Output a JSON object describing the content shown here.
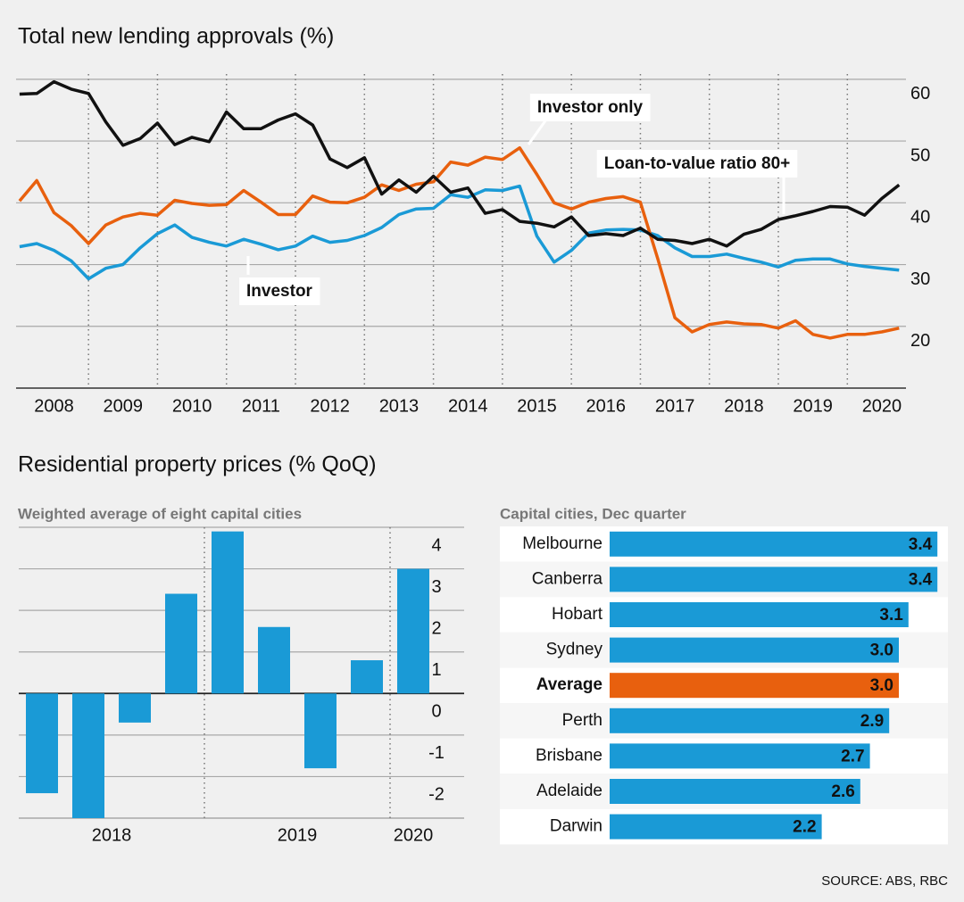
{
  "chart_data": [
    {
      "type": "line",
      "title": "Total new lending approvals (%)",
      "x": [
        2008,
        2008.25,
        2008.5,
        2008.75,
        2009,
        2009.25,
        2009.5,
        2009.75,
        2010,
        2010.25,
        2010.5,
        2010.75,
        2011,
        2011.25,
        2011.5,
        2011.75,
        2012,
        2012.25,
        2012.5,
        2012.75,
        2013,
        2013.25,
        2013.5,
        2013.75,
        2014,
        2014.25,
        2014.5,
        2014.75,
        2015,
        2015.25,
        2015.5,
        2015.75,
        2016,
        2016.25,
        2016.5,
        2016.75,
        2017,
        2017.25,
        2017.5,
        2017.75,
        2018,
        2018.25,
        2018.5,
        2018.75,
        2019,
        2019.25,
        2019.5,
        2019.75,
        2020,
        2020.25,
        2020.5,
        2020.75
      ],
      "xlim": [
        2007.95,
        2020.85
      ],
      "xticks": [
        2008,
        2009,
        2010,
        2011,
        2012,
        2013,
        2014,
        2015,
        2016,
        2017,
        2018,
        2019,
        2020
      ],
      "ylim": [
        10,
        62
      ],
      "yticks": [
        20,
        30,
        40,
        50,
        60
      ],
      "grid": true,
      "series": [
        {
          "name": "Investor",
          "color": "#1a9ad6",
          "values": [
            32.9,
            33.4,
            32.3,
            30.6,
            27.7,
            29.4,
            30.0,
            32.7,
            35.0,
            36.4,
            34.4,
            33.6,
            33.0,
            34.1,
            33.3,
            32.4,
            33.0,
            34.6,
            33.6,
            33.9,
            34.7,
            36.0,
            38.1,
            39.0,
            39.1,
            41.3,
            40.9,
            42.1,
            42.0,
            42.7,
            34.6,
            30.4,
            32.3,
            35.1,
            35.6,
            35.7,
            35.6,
            34.7,
            32.7,
            31.3,
            31.3,
            31.7,
            31.0,
            30.4,
            29.6,
            30.7,
            30.9,
            30.9,
            30.1,
            29.7,
            29.4,
            29.1
          ]
        },
        {
          "name": "Investor only",
          "color": "#e8600e",
          "values": [
            40.3,
            43.6,
            38.4,
            36.3,
            33.4,
            36.4,
            37.7,
            38.3,
            38.0,
            40.4,
            39.9,
            39.6,
            39.7,
            42.0,
            40.1,
            38.1,
            38.1,
            41.1,
            40.1,
            40.0,
            40.9,
            42.9,
            42.0,
            43.0,
            43.4,
            46.6,
            46.1,
            47.4,
            47.0,
            48.9,
            44.6,
            40.0,
            39.0,
            40.1,
            40.7,
            41.0,
            40.1,
            31.0,
            21.4,
            19.1,
            20.3,
            20.7,
            20.4,
            20.3,
            19.7,
            20.9,
            18.7,
            18.1,
            18.7,
            18.7,
            19.1,
            19.7
          ]
        },
        {
          "name": "Loan-to-value ratio 80+",
          "color": "#111111",
          "values": [
            57.6,
            57.7,
            59.6,
            58.4,
            57.7,
            53.1,
            49.3,
            50.4,
            52.9,
            49.4,
            50.6,
            49.9,
            54.7,
            52.0,
            52.0,
            53.4,
            54.4,
            52.6,
            47.1,
            45.7,
            47.3,
            41.4,
            43.7,
            41.7,
            44.3,
            41.7,
            42.4,
            38.3,
            38.9,
            37.0,
            36.7,
            36.1,
            37.7,
            34.7,
            35.0,
            34.7,
            35.9,
            34.1,
            33.9,
            33.4,
            34.1,
            33.0,
            34.9,
            35.7,
            37.3,
            37.9,
            38.6,
            39.4,
            39.3,
            38.0,
            40.7,
            42.9
          ]
        }
      ]
    },
    {
      "type": "bar",
      "title": "Residential property prices (% QoQ)",
      "subtitle": "Weighted average of eight capital cities",
      "categories": [
        "2018",
        null,
        null,
        null,
        "2019",
        null,
        null,
        null,
        "2020"
      ],
      "values": [
        -2.4,
        -3.0,
        -0.7,
        2.4,
        3.9,
        1.6,
        -1.8,
        0.8,
        3.0
      ],
      "color": "#1a9ad6",
      "ylim": [
        -3,
        4
      ],
      "yticks": [
        -2,
        -1,
        0,
        1,
        2,
        3,
        4
      ],
      "grid": true
    },
    {
      "type": "hbar",
      "subtitle": "Capital cities, Dec quarter",
      "categories": [
        "Melbourne",
        "Canberra",
        "Hobart",
        "Sydney",
        "Average",
        "Perth",
        "Brisbane",
        "Adelaide",
        "Darwin"
      ],
      "values": [
        3.4,
        3.4,
        3.1,
        3.0,
        3.0,
        2.9,
        2.7,
        2.6,
        2.2
      ],
      "value_labels": [
        "3.4",
        "3.4",
        "3.1",
        "3.0",
        "3.0",
        "2.9",
        "2.7",
        "2.6",
        "2.2"
      ],
      "color": "#1a9ad6",
      "highlight": "Average",
      "highlight_color": "#e8600e",
      "xlim": [
        0,
        3.5
      ]
    }
  ],
  "source": "SOURCE: ABS, RBC"
}
